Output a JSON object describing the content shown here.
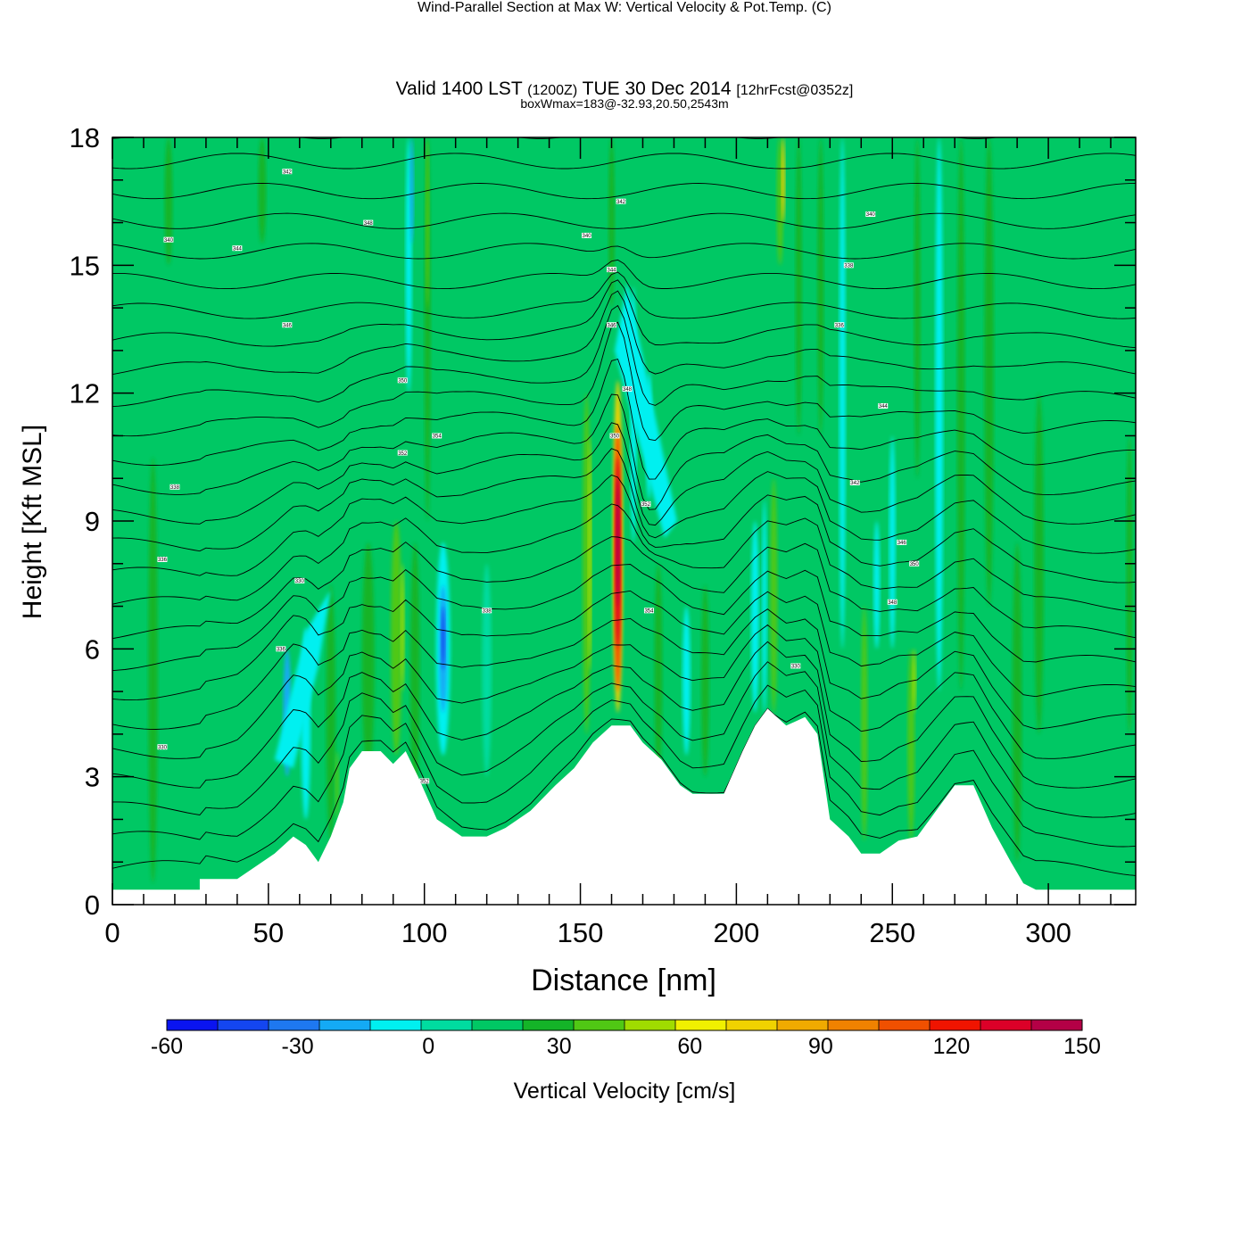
{
  "title": {
    "main": "Wind-Parallel Section at Max W: Vertical Velocity & Pot.Temp.",
    "copyright": "(C)",
    "valid_prefix": "Valid 1400 LST",
    "valid_utc": "(1200Z)",
    "valid_date": "TUE 30 Dec 2014",
    "forecast": "[12hrFcst@0352z]",
    "boxmax": "boxWmax=183@-32.93,20.50,2543m"
  },
  "chart_data": {
    "type": "heatmap",
    "subtype": "vertical cross-section with contour overlay",
    "xlabel": "Distance [nm]",
    "ylabel": "Height [Kft MSL]",
    "xlim": [
      0,
      328
    ],
    "ylim": [
      0,
      18
    ],
    "x_ticks": [
      0,
      50,
      100,
      150,
      200,
      250,
      300
    ],
    "y_ticks": [
      0,
      3,
      6,
      9,
      12,
      15,
      18
    ],
    "colorbar": {
      "label": "Vertical Velocity [cm/s]",
      "range": [
        -60,
        150
      ],
      "step": 10,
      "tick_labels": [
        "-60",
        "-30",
        "0",
        "30",
        "60",
        "90",
        "120",
        "150"
      ],
      "colors": [
        "#0a14f0",
        "#1446f0",
        "#1e78f0",
        "#14aaf5",
        "#00f0f0",
        "#00dca0",
        "#00c864",
        "#14b428",
        "#50c814",
        "#a0dc00",
        "#f0f000",
        "#f0d200",
        "#f0aa00",
        "#f08200",
        "#f05000",
        "#f01400",
        "#dc0028",
        "#b40046"
      ]
    },
    "terrain": [
      [
        0,
        0.35
      ],
      [
        28,
        0.35
      ],
      [
        28,
        0.6
      ],
      [
        40,
        0.6
      ],
      [
        46,
        0.9
      ],
      [
        52,
        1.2
      ],
      [
        58,
        1.6
      ],
      [
        62,
        1.4
      ],
      [
        66,
        1.0
      ],
      [
        70,
        1.6
      ],
      [
        74,
        2.4
      ],
      [
        76,
        3.2
      ],
      [
        80,
        3.6
      ],
      [
        86,
        3.6
      ],
      [
        90,
        3.3
      ],
      [
        94,
        3.6
      ],
      [
        98,
        3.0
      ],
      [
        104,
        2.0
      ],
      [
        112,
        1.6
      ],
      [
        120,
        1.6
      ],
      [
        126,
        1.8
      ],
      [
        134,
        2.2
      ],
      [
        142,
        2.8
      ],
      [
        148,
        3.2
      ],
      [
        154,
        3.8
      ],
      [
        160,
        4.2
      ],
      [
        166,
        4.2
      ],
      [
        170,
        3.8
      ],
      [
        176,
        3.4
      ],
      [
        182,
        2.8
      ],
      [
        186,
        2.6
      ],
      [
        196,
        2.6
      ],
      [
        202,
        3.6
      ],
      [
        206,
        4.2
      ],
      [
        210,
        4.6
      ],
      [
        216,
        4.2
      ],
      [
        222,
        4.4
      ],
      [
        226,
        4.0
      ],
      [
        230,
        2.0
      ],
      [
        236,
        1.6
      ],
      [
        240,
        1.2
      ],
      [
        246,
        1.2
      ],
      [
        252,
        1.5
      ],
      [
        258,
        1.6
      ],
      [
        264,
        2.2
      ],
      [
        270,
        2.8
      ],
      [
        276,
        2.8
      ],
      [
        282,
        1.8
      ],
      [
        288,
        1.0
      ],
      [
        292,
        0.5
      ],
      [
        296,
        0.35
      ],
      [
        328,
        0.35
      ]
    ],
    "theta_levels": [
      300,
      302,
      304,
      306,
      308,
      310,
      312,
      314,
      316,
      318,
      320,
      322,
      324,
      326,
      328,
      330,
      332,
      334,
      336,
      338,
      340,
      342,
      344,
      346,
      348,
      350
    ],
    "contour_labels": [
      "330",
      "336",
      "338",
      "340",
      "342",
      "344",
      "346",
      "348",
      "350",
      "352",
      "354"
    ],
    "notable_features": {
      "max_updraft_cm_s": 130,
      "max_updraft_distance_nm": 162,
      "max_downdraft_cm_s": -45,
      "max_downdraft_distance_nm": 106
    }
  }
}
